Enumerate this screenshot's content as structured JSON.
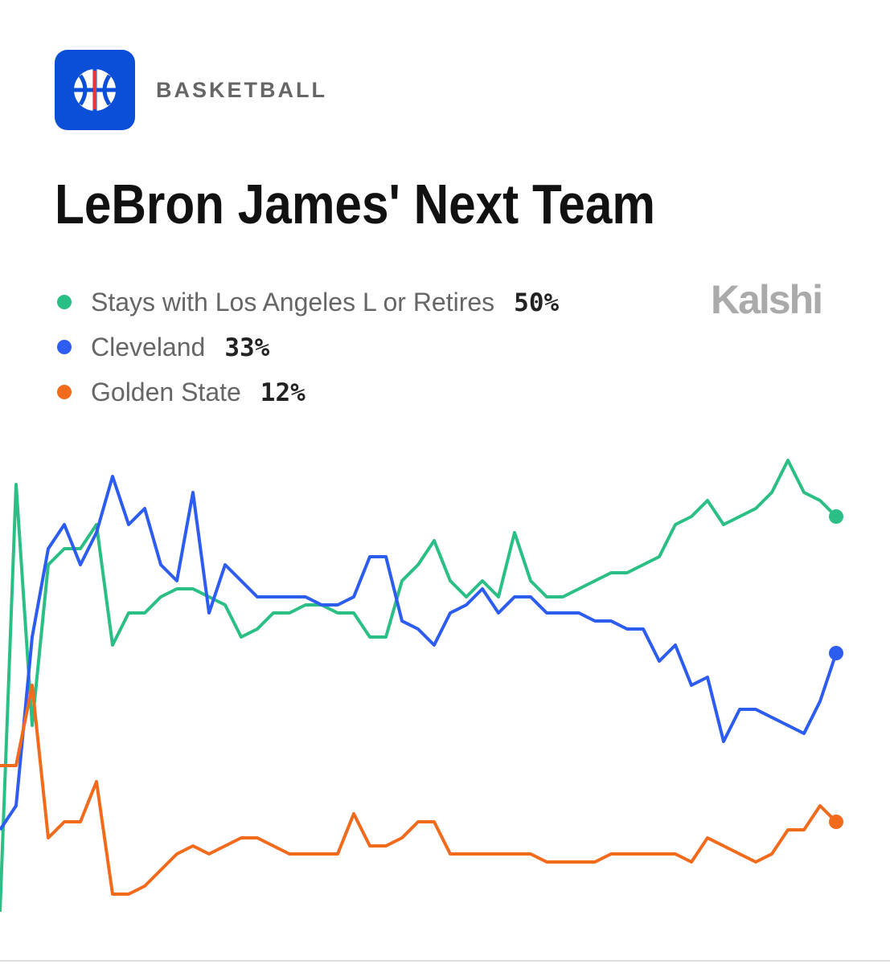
{
  "header": {
    "category": "BASKETBALL",
    "brand": "Kalshi"
  },
  "chart_data": {
    "type": "line",
    "title": "LeBron James' Next Team",
    "ylim": [
      0,
      60
    ],
    "series": [
      {
        "name": "Stays with Los Angeles L or Retires",
        "color": "#2bbf86",
        "current": {
          "value": 50,
          "label": "50%"
        },
        "values": [
          0.8,
          54,
          24,
          44,
          46,
          46,
          49,
          34,
          38,
          38,
          40,
          41,
          41,
          40,
          39,
          35,
          36,
          38,
          38,
          39,
          39,
          38,
          38,
          35,
          35,
          42,
          44,
          47,
          42,
          40,
          42,
          40,
          48,
          42,
          40,
          40,
          41,
          42,
          43,
          43,
          44,
          45,
          49,
          50,
          52,
          49,
          50,
          51,
          53,
          57,
          53,
          52,
          50
        ]
      },
      {
        "name": "Cleveland",
        "color": "#2d5cf0",
        "current": {
          "value": 33,
          "label": "33%"
        },
        "values": [
          11,
          14,
          35,
          46,
          49,
          44,
          48,
          55,
          49,
          51,
          44,
          42,
          53,
          38,
          44,
          42,
          40,
          40,
          40,
          40,
          39,
          39,
          40,
          45,
          45,
          37,
          36,
          34,
          38,
          39,
          41,
          38,
          40,
          40,
          38,
          38,
          38,
          37,
          37,
          36,
          36,
          32,
          34,
          29,
          30,
          22,
          26,
          26,
          25,
          24,
          23,
          27,
          33
        ]
      },
      {
        "name": "Golden State",
        "color": "#f26b1d",
        "current": {
          "value": 12,
          "label": "12%"
        },
        "values": [
          19,
          19,
          29,
          10,
          12,
          12,
          17,
          3,
          3,
          4,
          6,
          8,
          9,
          8,
          9,
          10,
          10,
          9,
          8,
          8,
          8,
          8,
          13,
          9,
          9,
          10,
          12,
          12,
          8,
          8,
          8,
          8,
          8,
          8,
          7,
          7,
          7,
          7,
          8,
          8,
          8,
          8,
          8,
          7,
          10,
          9,
          8,
          7,
          8,
          11,
          11,
          14,
          12
        ]
      }
    ]
  }
}
